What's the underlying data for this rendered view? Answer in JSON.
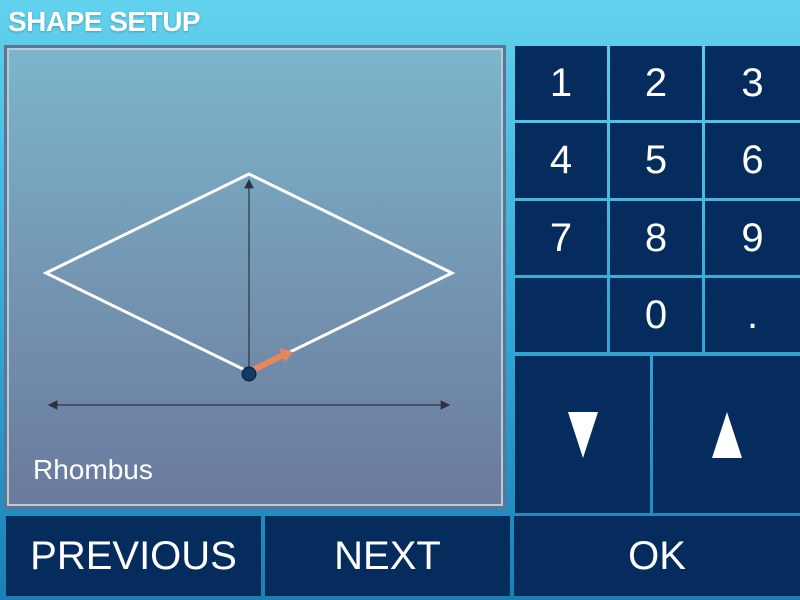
{
  "title": "SHAPE SETUP",
  "shape": {
    "name": "Rhombus"
  },
  "keypad": {
    "keys": [
      "1",
      "2",
      "3",
      "4",
      "5",
      "6",
      "7",
      "8",
      "9",
      "",
      "0",
      "."
    ],
    "down_icon": "triangle-down",
    "up_icon": "triangle-up"
  },
  "buttons": {
    "previous": "PREVIOUS",
    "next": "NEXT",
    "ok": "OK"
  },
  "colors": {
    "button_bg": "#062c5e",
    "accent_arrow": "#e8875a",
    "shape_stroke": "#ffffff"
  }
}
